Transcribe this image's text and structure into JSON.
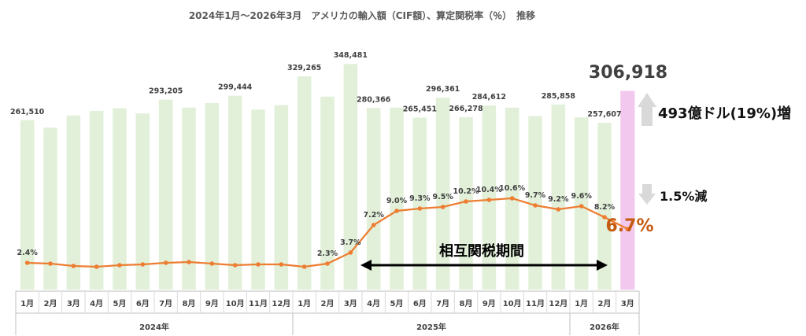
{
  "chart_data": {
    "type": "bar+line",
    "title": "2024年1月～2026年3月　アメリカの輸入額（CIF額）、算定関税率（％）　推移",
    "categories": [
      "1月",
      "2月",
      "3月",
      "4月",
      "5月",
      "6月",
      "7月",
      "8月",
      "9月",
      "10月",
      "11月",
      "12月",
      "1月",
      "2月",
      "3月",
      "4月",
      "5月",
      "6月",
      "7月",
      "8月",
      "9月",
      "10月",
      "11月",
      "12月",
      "1月",
      "2月",
      "3月"
    ],
    "years": [
      {
        "label": "2024年",
        "start": 0,
        "end": 11
      },
      {
        "label": "2025年",
        "start": 12,
        "end": 23
      },
      {
        "label": "2026年",
        "start": 24,
        "end": 26
      }
    ],
    "series": [
      {
        "kind": "bar",
        "color": "#e2f0d9",
        "highlight_color": "#f2c8ee",
        "values": [
          261510,
          250000,
          269000,
          276000,
          280000,
          272000,
          293205,
          281000,
          288000,
          299444,
          278000,
          285000,
          329265,
          298000,
          348481,
          280366,
          281000,
          265451,
          296361,
          266278,
          284612,
          281000,
          268000,
          285858,
          266000,
          257607,
          306918
        ],
        "labels": [
          "261,510",
          "",
          "",
          "",
          "",
          "",
          "293,205",
          "",
          "",
          "299,444",
          "",
          "",
          "329,265",
          "",
          "348,481",
          "280,366",
          "",
          "265,451",
          "296,361",
          "266,278",
          "284,612",
          "",
          "",
          "285,858",
          "",
          "257,607",
          ""
        ]
      },
      {
        "kind": "line",
        "color": "#ed7d31",
        "values": [
          2.4,
          2.3,
          2.0,
          1.9,
          2.1,
          2.2,
          2.4,
          2.5,
          2.3,
          2.1,
          2.2,
          2.2,
          1.9,
          2.3,
          3.7,
          7.2,
          9.0,
          9.3,
          9.5,
          10.2,
          10.4,
          10.6,
          9.7,
          9.2,
          9.6,
          8.2,
          6.7
        ],
        "labels": [
          "2.4%",
          "",
          "",
          "",
          "",
          "",
          "",
          "",
          "",
          "",
          "",
          "",
          "",
          "2.3%",
          "3.7%",
          "7.2%",
          "9.0%",
          "9.3%",
          "9.5%",
          "10.2%",
          "10.4%",
          "10.6%",
          "9.7%",
          "9.2%",
          "9.6%",
          "8.2%",
          ""
        ]
      }
    ],
    "annotations": {
      "last_value": "306,918",
      "last_rate": "6.7%",
      "increase": "493億ドル(19%)増",
      "decrease": "1.5%減",
      "period": "相互関税期間"
    },
    "y_bar_range": [
      0,
      400000
    ],
    "y_line_range": [
      0,
      28
    ]
  }
}
